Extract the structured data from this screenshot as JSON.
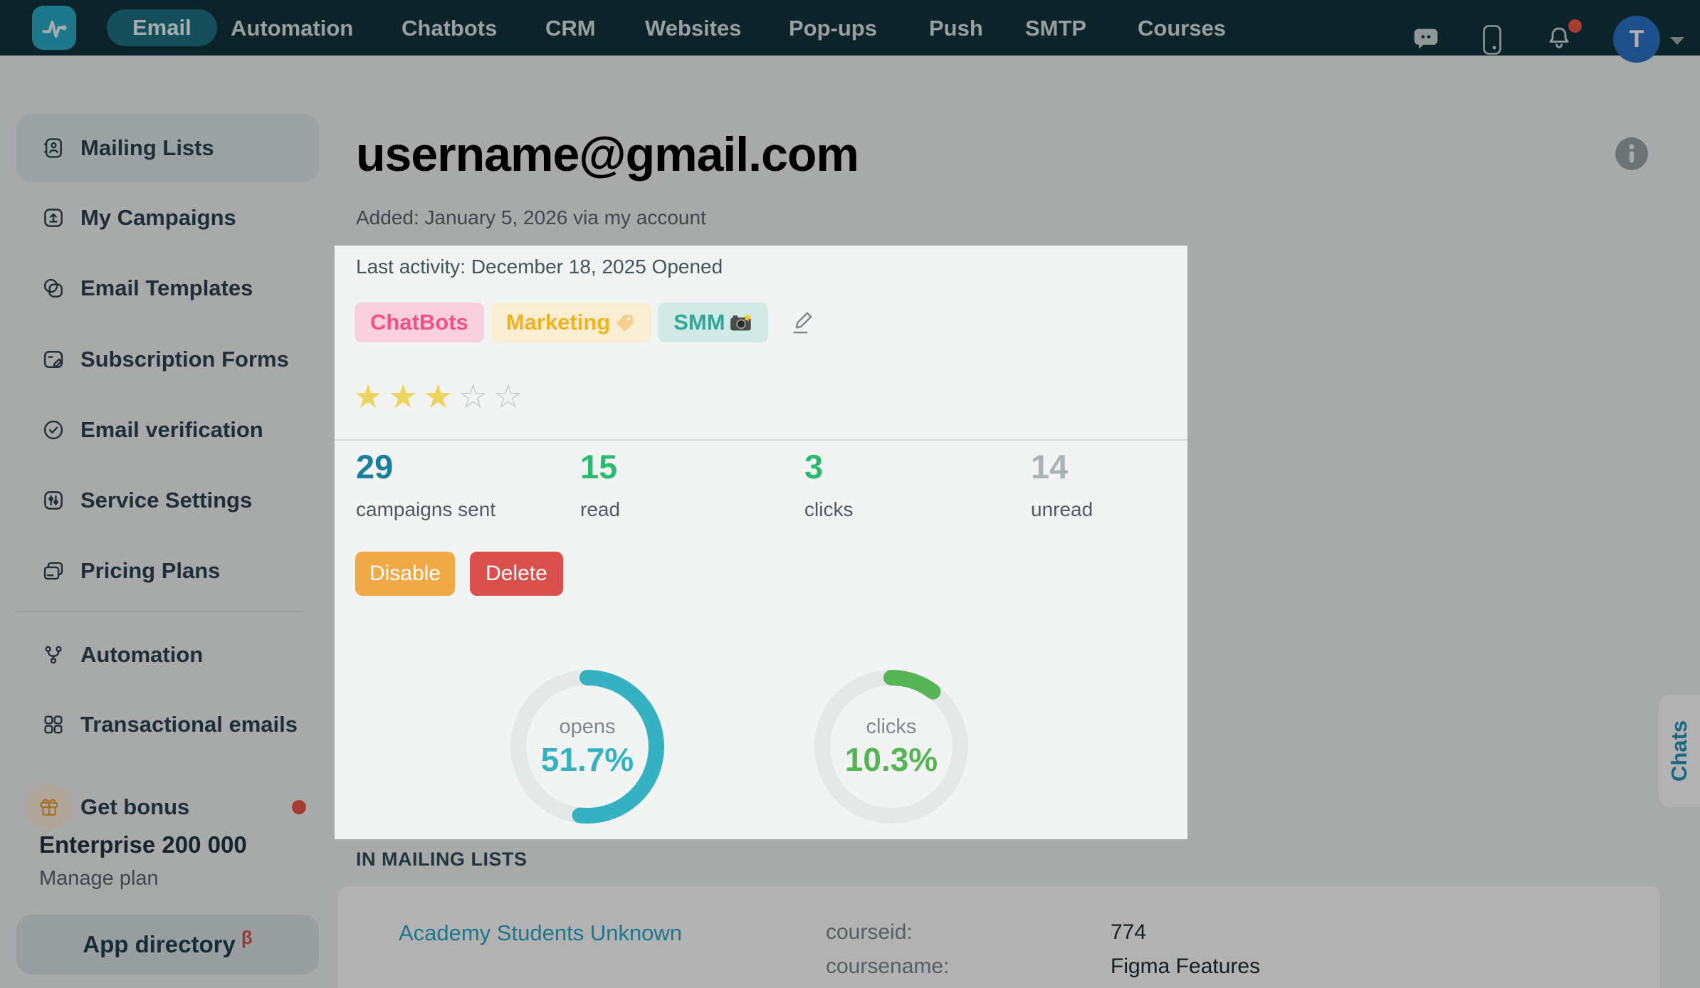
{
  "colors": {
    "nav_bg": "#12333d",
    "accent_teal": "#35b2c2",
    "green": "#57b455",
    "link_teal": "#2da8c9",
    "warning_orange": "#f0a944",
    "danger_red": "#d9504c"
  },
  "nav": {
    "items": [
      {
        "label": "Email",
        "active": true
      },
      {
        "label": "Automation",
        "active": false
      },
      {
        "label": "Chatbots",
        "active": false
      },
      {
        "label": "CRM",
        "active": false
      },
      {
        "label": "Websites",
        "active": false
      },
      {
        "label": "Pop-ups",
        "active": false
      },
      {
        "label": "Push",
        "active": false
      },
      {
        "label": "SMTP",
        "active": false
      },
      {
        "label": "Courses",
        "active": false
      }
    ],
    "right": {
      "avatar_initial": "T",
      "has_notification_dot": true
    }
  },
  "sidebar": {
    "items": [
      {
        "label": "Mailing Lists",
        "active": true
      },
      {
        "label": "My Campaigns",
        "active": false
      },
      {
        "label": "Email Templates",
        "active": false
      },
      {
        "label": "Subscription Forms",
        "active": false
      },
      {
        "label": "Email verification",
        "active": false
      },
      {
        "label": "Service Settings",
        "active": false
      },
      {
        "label": "Pricing Plans",
        "active": false
      },
      {
        "label": "Automation",
        "active": false
      },
      {
        "label": "Transactional emails",
        "active": false
      }
    ],
    "bonus": {
      "label": "Get bonus",
      "has_alert_dot": true
    },
    "plan": {
      "name": "Enterprise 200 000",
      "manage_label": "Manage plan"
    },
    "app_directory": {
      "label": "App directory",
      "beta_badge": "β"
    }
  },
  "main": {
    "title": "username@gmail.com",
    "added": "Added: January 5, 2026 via my account",
    "section_heading": "IN MAILING LISTS"
  },
  "popup": {
    "last_activity": "Last activity: December 18, 2025 Opened",
    "tags": [
      {
        "label": "ChatBots",
        "emoji": "",
        "bg": "#f8cfdc",
        "text_color": "#ef5289"
      },
      {
        "label": "Marketing",
        "emoji": "🏷️",
        "bg": "#f9eed3",
        "text_color": "#efb320"
      },
      {
        "label": "SMM",
        "emoji": "📸",
        "bg": "#d2eae5",
        "text_color": "#32a795"
      }
    ],
    "rating": {
      "value": 3,
      "max": 5,
      "filled_color": "#edd45e",
      "empty_color": "#c3c9cb"
    },
    "stats": [
      {
        "value": "29",
        "label": "campaigns sent",
        "color": "#1a7f9c"
      },
      {
        "value": "15",
        "label": "read",
        "color": "#2bbb6f"
      },
      {
        "value": "3",
        "label": "clicks",
        "color": "#2bbb6f"
      },
      {
        "value": "14",
        "label": "unread",
        "color": "#a9b2b4"
      }
    ],
    "buttons": [
      {
        "label": "Disable",
        "bg": "#f0a944"
      },
      {
        "label": "Delete",
        "bg": "#d9504c"
      }
    ]
  },
  "chart_data": [
    {
      "type": "donut",
      "label": "opens",
      "value_pct": 51.7,
      "color": "#35b2c2",
      "track_color": "#e6e8e8"
    },
    {
      "type": "donut",
      "label": "clicks",
      "value_pct": 10.3,
      "color": "#57b455",
      "track_color": "#e6e8e8"
    }
  ],
  "mailing_lists": {
    "rows": [
      {
        "name": "Academy Students Unknown",
        "fields": [
          {
            "key": "courseid:",
            "value": "774"
          },
          {
            "key": "coursename:",
            "value": "Figma Features"
          }
        ]
      }
    ]
  },
  "chats_tab": {
    "label": "Chats"
  }
}
